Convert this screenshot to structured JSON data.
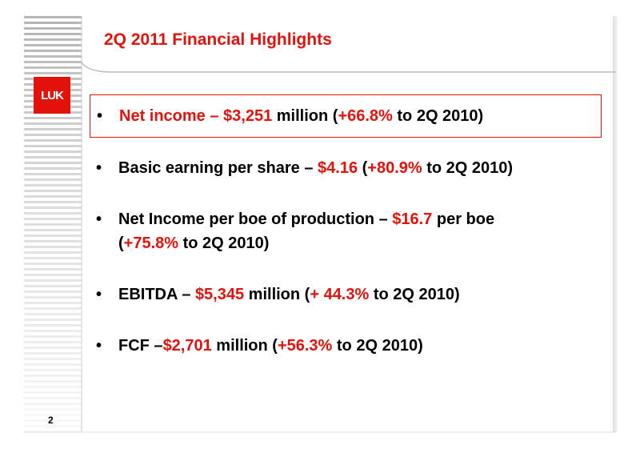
{
  "header": {
    "title": "2Q 2011 Financial Highlights",
    "color": "#e3120b"
  },
  "logo": {
    "label": "LUK"
  },
  "bullets": [
    {
      "boxed": true,
      "segments": [
        {
          "text": "Net income – $3,251",
          "color": "#e3120b"
        },
        {
          "text": " million (",
          "color": "#000000"
        },
        {
          "text": "+66.8%",
          "color": "#e3120b"
        },
        {
          "text": " to 2Q 2010)",
          "color": "#000000"
        }
      ]
    },
    {
      "boxed": false,
      "segments": [
        {
          "text": "Basic earning per share – ",
          "color": "#000000"
        },
        {
          "text": "$4.16",
          "color": "#e3120b"
        },
        {
          "text": " (",
          "color": "#000000"
        },
        {
          "text": "+80.9%",
          "color": "#e3120b"
        },
        {
          "text": " to 2Q 2010)",
          "color": "#000000"
        }
      ]
    },
    {
      "boxed": false,
      "segments": [
        {
          "text": "Net Income per boe of production – ",
          "color": "#000000"
        },
        {
          "text": "$16.7",
          "color": "#e3120b"
        },
        {
          "text": " per boe\n(",
          "color": "#000000"
        },
        {
          "text": "+75.8%",
          "color": "#e3120b"
        },
        {
          "text": " to 2Q 2010)",
          "color": "#000000"
        }
      ]
    },
    {
      "boxed": false,
      "segments": [
        {
          "text": "EBITDA – ",
          "color": "#000000"
        },
        {
          "text": "$5,345",
          "color": "#e3120b"
        },
        {
          "text": " million (",
          "color": "#000000"
        },
        {
          "text": "+ 44.3%",
          "color": "#e3120b"
        },
        {
          "text": " to 2Q 2010)",
          "color": "#000000"
        }
      ]
    },
    {
      "boxed": false,
      "segments": [
        {
          "text": "FCF  –",
          "color": "#000000"
        },
        {
          "text": "$2,701",
          "color": "#e3120b"
        },
        {
          "text": " million (",
          "color": "#000000"
        },
        {
          "text": "+56.3%",
          "color": "#e3120b"
        },
        {
          "text": " to 2Q 2010)",
          "color": "#000000"
        }
      ]
    }
  ],
  "footer": {
    "page_number": "2"
  }
}
